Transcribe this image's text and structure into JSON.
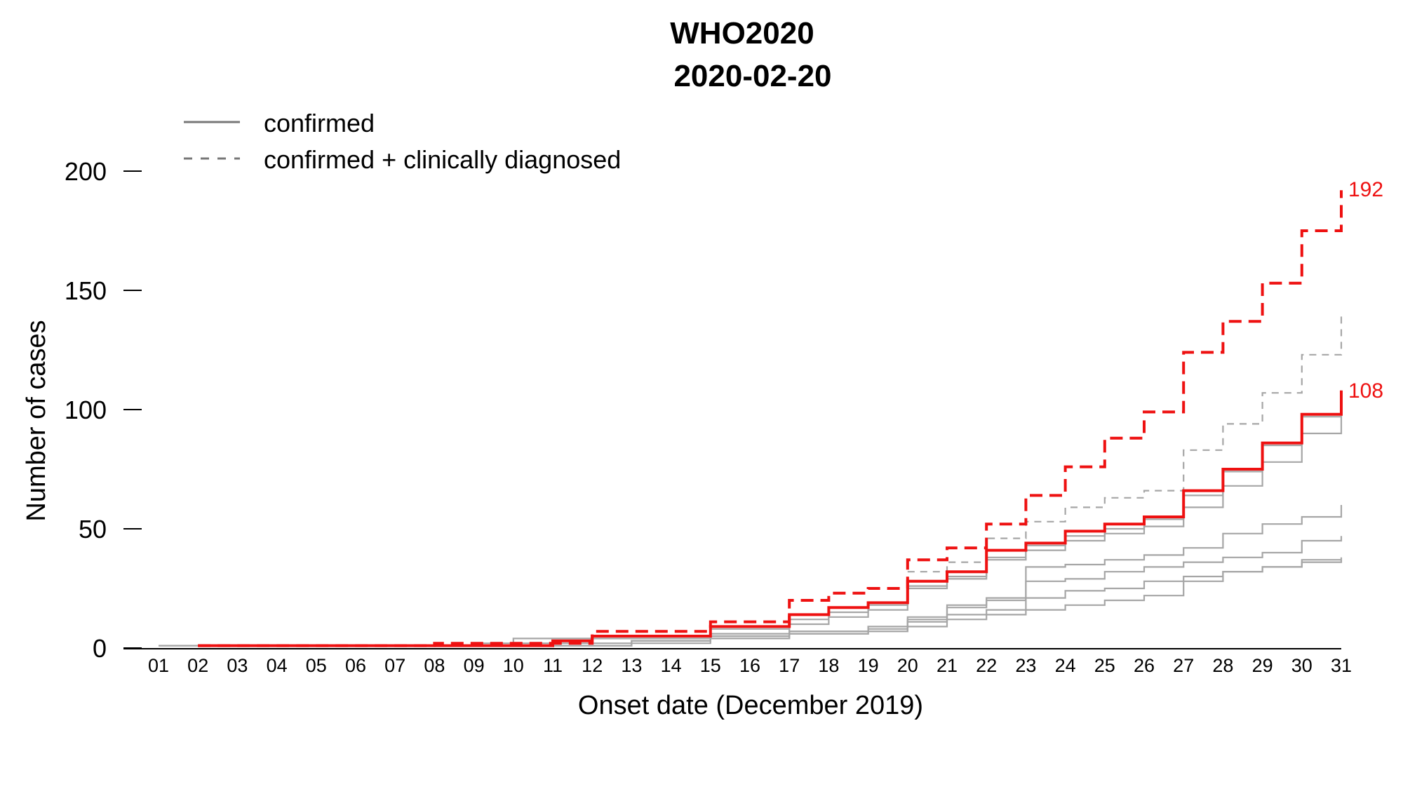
{
  "chart_data": {
    "type": "line",
    "title": "WHO2020",
    "subtitle": "2020-02-20",
    "xlabel": "Onset date (December 2019)",
    "ylabel": "Number of cases",
    "x_ticks": [
      "01",
      "02",
      "03",
      "04",
      "05",
      "06",
      "07",
      "08",
      "09",
      "10",
      "11",
      "12",
      "13",
      "14",
      "15",
      "16",
      "17",
      "18",
      "19",
      "20",
      "21",
      "22",
      "23",
      "24",
      "25",
      "26",
      "27",
      "28",
      "29",
      "30",
      "31"
    ],
    "y_ticks": [
      0,
      50,
      100,
      150,
      200
    ],
    "ylim": [
      0,
      200
    ],
    "xlim": [
      1,
      31
    ],
    "step": true,
    "grid": false,
    "legend": {
      "position": "top-left",
      "entries": [
        {
          "label": "confirmed",
          "style": "solid"
        },
        {
          "label": "confirmed + clinically diagnosed",
          "style": "dashed"
        }
      ]
    },
    "colors": {
      "highlight": "#ee1111",
      "background_series": "#a6a6a6",
      "legend_line": "#777777",
      "axis": "#000000"
    },
    "end_labels": [
      "192",
      "108"
    ],
    "series": [
      {
        "style": "dashed",
        "highlight": true,
        "x": [
          2,
          8,
          12,
          15,
          17,
          18,
          19,
          20,
          21,
          22,
          23,
          24,
          25,
          26,
          27,
          28,
          29,
          30,
          31
        ],
        "y": [
          1,
          2,
          7,
          11,
          20,
          23,
          25,
          37,
          42,
          52,
          64,
          76,
          88,
          99,
          124,
          137,
          153,
          175,
          192
        ]
      },
      {
        "style": "solid",
        "highlight": true,
        "x": [
          2,
          8,
          11,
          12,
          15,
          17,
          18,
          19,
          20,
          21,
          22,
          23,
          24,
          25,
          26,
          27,
          28,
          29,
          30,
          31
        ],
        "y": [
          1,
          1,
          3,
          5,
          9,
          14,
          17,
          19,
          28,
          32,
          41,
          44,
          49,
          52,
          55,
          66,
          75,
          86,
          98,
          108
        ]
      },
      {
        "style": "dashed",
        "highlight": false,
        "x": [
          20,
          21,
          22,
          23,
          24,
          25,
          26,
          27,
          28,
          29,
          30,
          31
        ],
        "y": [
          32,
          36,
          46,
          53,
          59,
          63,
          66,
          83,
          94,
          107,
          123,
          139
        ]
      },
      {
        "style": "solid",
        "highlight": false,
        "x": [
          1,
          10,
          12,
          15,
          17,
          18,
          19,
          20,
          21,
          22,
          23,
          24,
          25,
          26,
          27,
          28,
          29,
          30,
          31
        ],
        "y": [
          1,
          4,
          5,
          8,
          12,
          15,
          18,
          26,
          30,
          38,
          43,
          47,
          50,
          54,
          64,
          74,
          85,
          97,
          108
        ]
      },
      {
        "style": "solid",
        "highlight": false,
        "x": [
          1,
          9,
          12,
          15,
          17,
          18,
          19,
          20,
          21,
          22,
          23,
          24,
          25,
          26,
          27,
          28,
          29,
          30,
          31
        ],
        "y": [
          1,
          2,
          4,
          6,
          10,
          13,
          16,
          25,
          29,
          37,
          41,
          45,
          48,
          51,
          59,
          68,
          78,
          90,
          98
        ]
      },
      {
        "style": "solid",
        "highlight": false,
        "x": [
          2,
          13,
          15,
          17,
          19,
          20,
          21,
          22,
          23,
          24,
          25,
          26,
          27,
          28,
          29,
          30,
          31
        ],
        "y": [
          1,
          3,
          5,
          7,
          9,
          13,
          18,
          21,
          34,
          35,
          37,
          39,
          42,
          48,
          52,
          55,
          60
        ]
      },
      {
        "style": "solid",
        "highlight": false,
        "x": [
          2,
          13,
          15,
          17,
          19,
          20,
          21,
          22,
          23,
          24,
          25,
          26,
          27,
          28,
          29,
          30,
          31
        ],
        "y": [
          1,
          3,
          5,
          7,
          8,
          12,
          17,
          20,
          28,
          29,
          32,
          34,
          36,
          38,
          40,
          45,
          47
        ]
      },
      {
        "style": "solid",
        "highlight": false,
        "x": [
          2,
          13,
          15,
          17,
          19,
          20,
          21,
          22,
          23,
          24,
          25,
          26,
          27,
          28,
          29,
          30,
          31
        ],
        "y": [
          1,
          3,
          4,
          6,
          7,
          11,
          12,
          14,
          16,
          18,
          20,
          22,
          28,
          32,
          34,
          37,
          37
        ]
      },
      {
        "style": "solid",
        "highlight": false,
        "x": [
          12,
          15,
          17,
          19,
          20,
          21,
          22,
          23,
          24,
          25,
          26,
          27,
          28,
          29,
          30,
          31
        ],
        "y": [
          2,
          4,
          6,
          7,
          9,
          14,
          16,
          21,
          24,
          25,
          28,
          30,
          32,
          34,
          36,
          38
        ]
      }
    ]
  }
}
